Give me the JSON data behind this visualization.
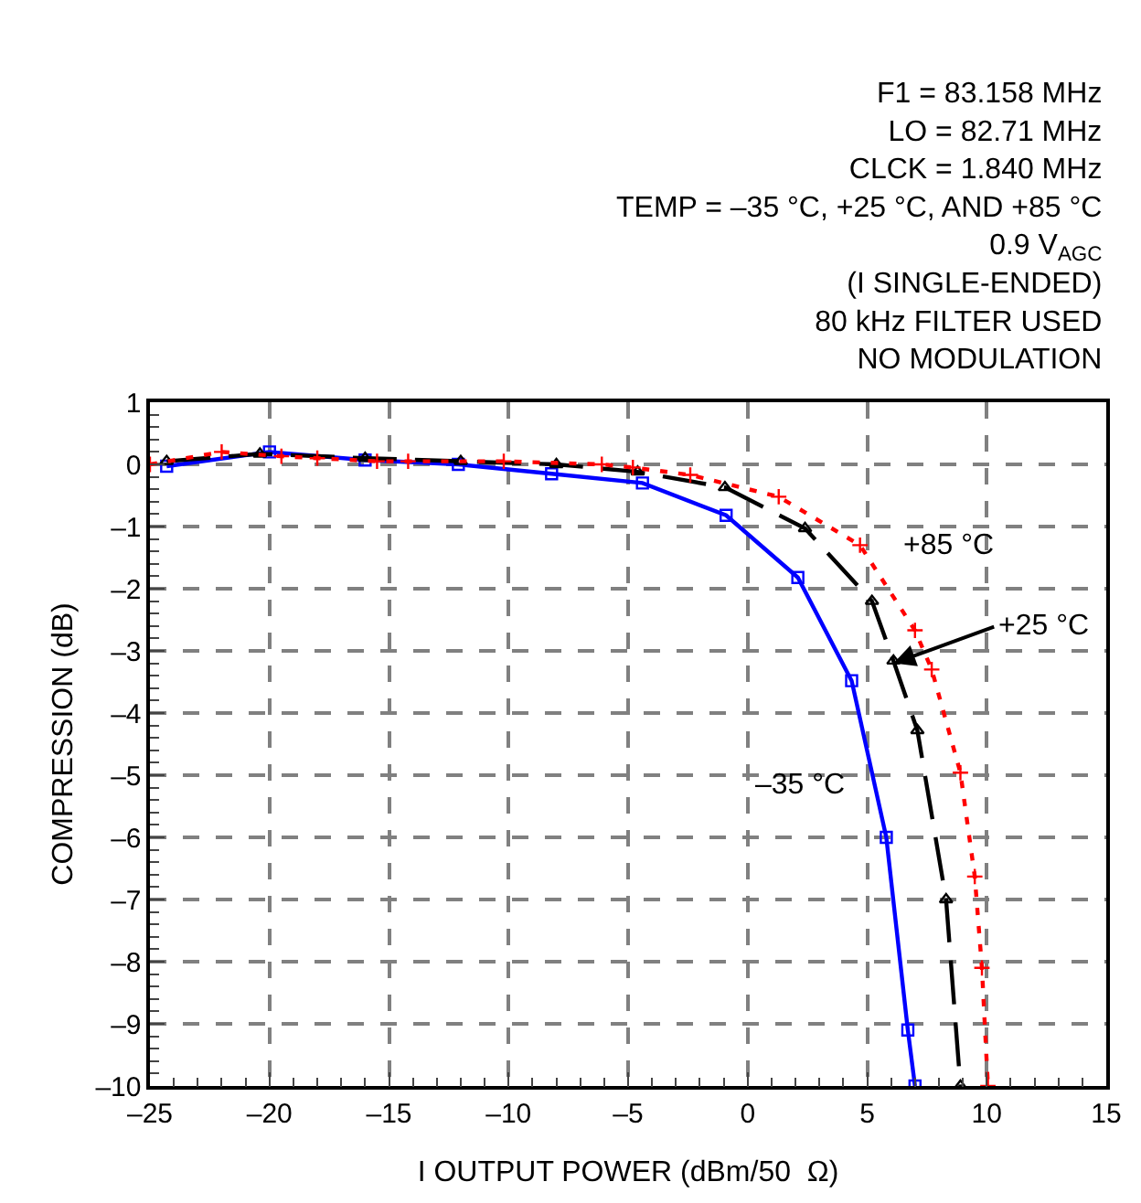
{
  "chart_data": {
    "type": "line",
    "xlabel": "I OUTPUT POWER (dBm/50  Ω)",
    "ylabel": "COMPRESSION (dB)",
    "xlim": [
      -25,
      15
    ],
    "xticks": [
      {
        "value": -25,
        "label": "–25"
      },
      {
        "value": -20,
        "label": "–20"
      },
      {
        "value": -15,
        "label": "–15"
      },
      {
        "value": -10,
        "label": "–10"
      },
      {
        "value": -5,
        "label": "–5"
      },
      0,
      5,
      10,
      15
    ],
    "ylim": [
      -10,
      1
    ],
    "yticks": [
      1,
      0,
      {
        "value": -1,
        "label": "–1"
      },
      {
        "value": -2,
        "label": "–2"
      },
      {
        "value": -3,
        "label": "–3"
      },
      {
        "value": -4,
        "label": "–4"
      },
      {
        "value": -5,
        "label": "–5"
      },
      {
        "value": -6,
        "label": "–6"
      },
      {
        "value": -7,
        "label": "–7"
      },
      {
        "value": -8,
        "label": "–8"
      },
      {
        "value": -9,
        "label": "–9"
      },
      {
        "value": -10,
        "label": "–10"
      }
    ],
    "grid": true,
    "series": [
      {
        "color": "#0000ff",
        "line_style": "solid",
        "marker": "square",
        "x": [
          -24.3,
          -20.0,
          -16.0,
          -12.1,
          -8.2,
          -4.4,
          -0.9,
          2.1,
          4.35,
          5.8,
          6.7,
          7.0
        ],
        "values": [
          -0.03,
          0.2,
          0.07,
          0.0,
          -0.15,
          -0.3,
          -0.82,
          -1.82,
          -3.48,
          -6.0,
          -9.1,
          -10.0
        ]
      },
      {
        "color": "#000000",
        "line_style": "dashed",
        "marker": "triangle",
        "x": [
          -24.3,
          -20.4,
          -16.0,
          -12.0,
          -8.0,
          -4.6,
          -0.95,
          2.4,
          5.2,
          6.1,
          7.1,
          8.3,
          8.9
        ],
        "values": [
          0.05,
          0.17,
          0.1,
          0.05,
          0.0,
          -0.12,
          -0.37,
          -1.03,
          -2.2,
          -3.16,
          -4.28,
          -7.0,
          -10.0
        ]
      },
      {
        "color": "#ff0000",
        "line_style": "dotted",
        "marker": "cross",
        "x": [
          -25.0,
          -22.0,
          -19.5,
          -18.0,
          -15.5,
          -14.2,
          -10.2,
          -6.1,
          -4.8,
          -2.4,
          1.3,
          4.7,
          7.0,
          7.7,
          8.9,
          9.5,
          9.8,
          10.05
        ],
        "values": [
          0.0,
          0.2,
          0.13,
          0.1,
          0.05,
          0.05,
          0.05,
          0.0,
          -0.05,
          -0.17,
          -0.52,
          -1.3,
          -2.67,
          -3.3,
          -4.96,
          -6.63,
          -8.1,
          -10.0
        ]
      }
    ],
    "annotations": [
      "F1 = 83.158 MHz",
      "LO = 82.71 MHz",
      "CLCK = 1.840 MHz",
      "TEMP = –35 °C, +25 °C, AND +85 °C",
      "0.9 V$_{AGC}$",
      "(I SINGLE-ENDED)",
      "80 kHz FILTER USED",
      "NO MODULATION",
      "+85 °C",
      {
        "text": "+25 °C",
        "x": 6.1,
        "y": -3.2
      },
      "–35 °C"
    ]
  }
}
